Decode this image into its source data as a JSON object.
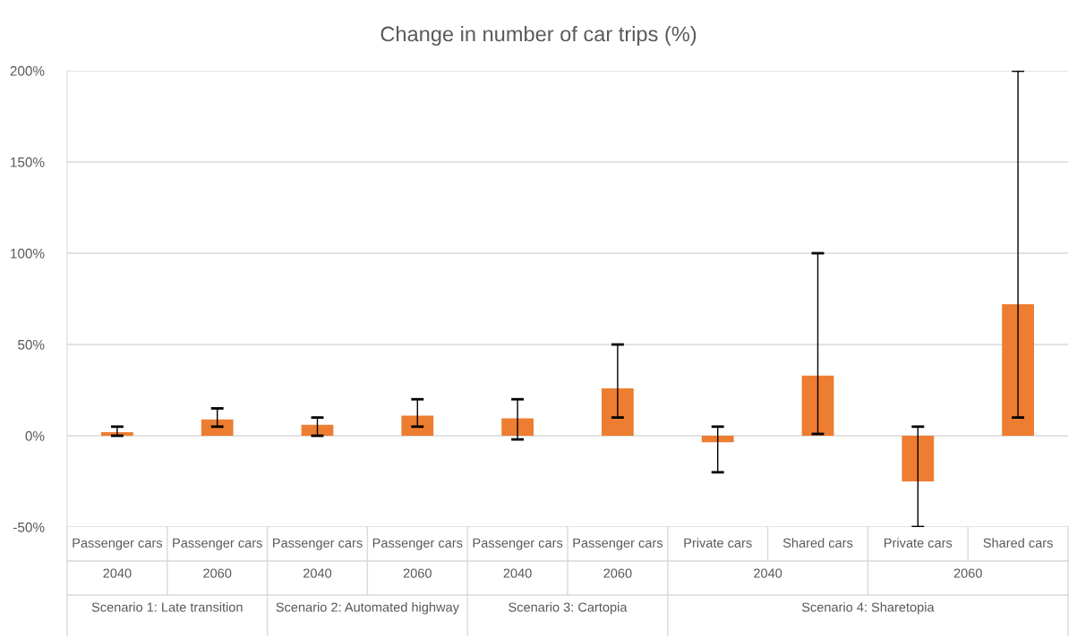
{
  "chart_data": {
    "type": "bar",
    "title": "Change in number of car trips (%)",
    "categories": [
      "Passenger cars",
      "Passenger cars",
      "Passenger cars",
      "Passenger cars",
      "Passenger cars",
      "Passenger cars",
      "Private cars",
      "Shared cars",
      "Private cars",
      "Shared cars"
    ],
    "values": [
      2,
      9,
      6,
      11,
      9.5,
      26,
      -3.5,
      33,
      -25,
      72
    ],
    "errors": [
      [
        0,
        5
      ],
      [
        5,
        15
      ],
      [
        0,
        10
      ],
      [
        5,
        20
      ],
      [
        -2,
        20
      ],
      [
        10,
        50
      ],
      [
        -20,
        5
      ],
      [
        1,
        100
      ],
      [
        -50,
        5
      ],
      [
        10,
        200
      ]
    ],
    "color": "#ed7d31",
    "annotations": [
      "2040",
      "2060",
      "2040",
      "2060",
      "2040",
      "2060",
      "2040",
      "2060",
      "Scenario 1: Late transition",
      "Scenario 2: Automated highway",
      "Scenario 3: Cartopia",
      "Scenario 4: Sharetopia"
    ],
    "ylim": [
      -50,
      200
    ],
    "yticks": [
      {
        "value": -50,
        "label": "-50%"
      },
      {
        "value": 0,
        "label": "0%"
      },
      {
        "value": 50,
        "label": "50%"
      },
      {
        "value": 100,
        "label": "100%"
      },
      {
        "value": 150,
        "label": "150%"
      },
      {
        "value": 200,
        "label": "200%"
      }
    ],
    "grid": "y",
    "legend": false
  }
}
